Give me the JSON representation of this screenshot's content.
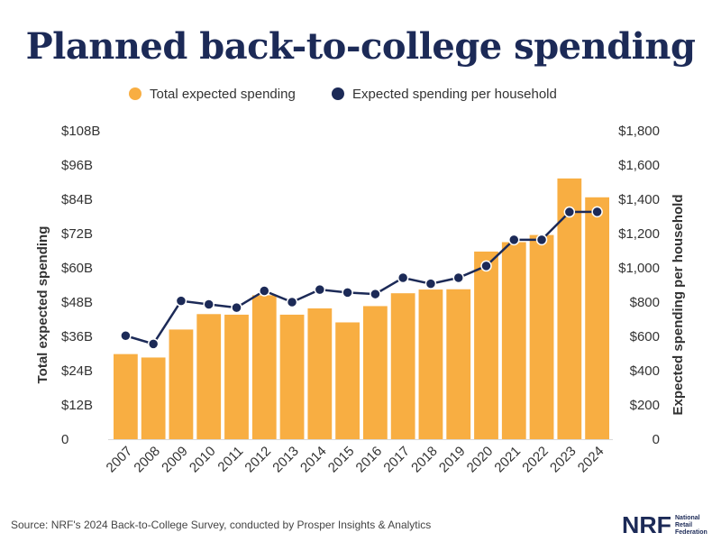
{
  "chart_data": {
    "type": "bar",
    "title": "Planned back-to-college spending",
    "categories": [
      "2007",
      "2008",
      "2009",
      "2010",
      "2011",
      "2012",
      "2013",
      "2014",
      "2015",
      "2016",
      "2017",
      "2018",
      "2019",
      "2020",
      "2021",
      "2022",
      "2023",
      "2024"
    ],
    "series": [
      {
        "name": "Total expected spending",
        "type": "bar",
        "axis": "left",
        "color": "#f8ae42",
        "values": [
          29.8,
          28.6,
          38.4,
          43.8,
          43.6,
          50.4,
          43.6,
          45.8,
          40.9,
          46.6,
          51.1,
          52.4,
          52.5,
          65.7,
          69.0,
          71.5,
          91.3,
          84.7
        ]
      },
      {
        "name": "Expected spending per household",
        "type": "line",
        "axis": "right",
        "color": "#1c2a57",
        "values": [
          604,
          556,
          807,
          787,
          768,
          866,
          800,
          873,
          856,
          847,
          942,
          907,
          942,
          1011,
          1164,
          1164,
          1326,
          1327
        ]
      }
    ],
    "ylabel": "Total expected spending",
    "y2label": "Expected spending per household",
    "ylim": [
      0,
      108
    ],
    "y2lim": [
      0,
      1800
    ],
    "yticks": [
      {
        "value": 0,
        "label": "0"
      },
      {
        "value": 12,
        "label": "$12B"
      },
      {
        "value": 24,
        "label": "$24B"
      },
      {
        "value": 36,
        "label": "$36B"
      },
      {
        "value": 48,
        "label": "$48B"
      },
      {
        "value": 60,
        "label": "$60B"
      },
      {
        "value": 72,
        "label": "$72B"
      },
      {
        "value": 84,
        "label": "$84B"
      },
      {
        "value": 96,
        "label": "$96B"
      },
      {
        "value": 108,
        "label": "$108B"
      }
    ],
    "y2ticks": [
      {
        "value": 0,
        "label": "0"
      },
      {
        "value": 200,
        "label": "$200"
      },
      {
        "value": 400,
        "label": "$400"
      },
      {
        "value": 600,
        "label": "$600"
      },
      {
        "value": 800,
        "label": "$800"
      },
      {
        "value": 1000,
        "label": "$1,000"
      },
      {
        "value": 1200,
        "label": "$1,200"
      },
      {
        "value": 1400,
        "label": "$1,400"
      },
      {
        "value": 1600,
        "label": "$1,600"
      },
      {
        "value": 1800,
        "label": "$1,800"
      }
    ],
    "grid": false,
    "legend_position": "top-center"
  },
  "source": "Source: NRF's 2024 Back-to-College Survey, conducted by Prosper Insights & Analytics",
  "logo": {
    "mark": "NRF",
    "line1": "National",
    "line2": "Retail",
    "line3": "Federation"
  },
  "colors": {
    "title": "#1c2a57",
    "bar": "#f8ae42",
    "line": "#1c2a57",
    "axis": "#d9d9d9"
  }
}
